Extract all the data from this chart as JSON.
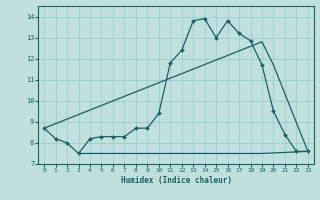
{
  "xlabel": "Humidex (Indice chaleur)",
  "xlim": [
    -0.5,
    23.5
  ],
  "ylim": [
    7,
    14.5
  ],
  "yticks": [
    7,
    8,
    9,
    10,
    11,
    12,
    13,
    14
  ],
  "xticks": [
    0,
    1,
    2,
    3,
    4,
    5,
    6,
    7,
    8,
    9,
    10,
    11,
    12,
    13,
    14,
    15,
    16,
    17,
    18,
    19,
    20,
    21,
    22,
    23
  ],
  "bg_color": "#c0e0e0",
  "grid_color": "#99cccc",
  "line_color": "#1a6060",
  "line1_x": [
    0,
    1,
    2,
    3,
    4,
    5,
    6,
    7,
    8,
    9,
    10,
    11,
    12,
    13,
    14,
    15,
    16,
    17,
    18,
    19,
    20,
    21,
    22,
    23
  ],
  "line1_y": [
    8.7,
    8.2,
    8.0,
    7.5,
    8.2,
    8.3,
    8.3,
    8.3,
    8.7,
    8.7,
    9.4,
    11.8,
    12.4,
    13.8,
    13.9,
    13.0,
    13.8,
    13.2,
    12.85,
    11.7,
    9.5,
    8.4,
    7.6,
    7.6
  ],
  "line2_x": [
    0,
    19,
    20,
    23
  ],
  "line2_y": [
    8.7,
    12.8,
    11.7,
    7.6
  ],
  "line3_x": [
    3,
    19,
    23
  ],
  "line3_y": [
    7.5,
    7.5,
    7.6
  ],
  "tick_fontsize": 4.5,
  "xlabel_fontsize": 5.5
}
